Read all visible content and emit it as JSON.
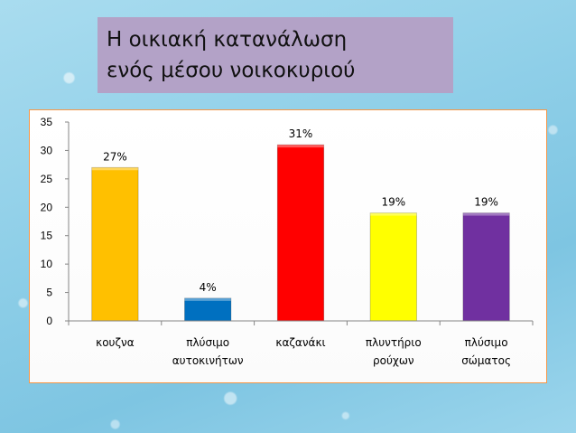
{
  "title": {
    "line1": "Η  οικιακή κατανάλωση",
    "line2": "ενός μέσου νοικοκυριού"
  },
  "chart_data": {
    "type": "bar",
    "categories": [
      [
        "κουζνα"
      ],
      [
        "πλύσιμο",
        "αυτοκινήτων"
      ],
      [
        "καζανάκι"
      ],
      [
        "πλυντήριο",
        "ρούχων"
      ],
      [
        "πλύσιμο",
        "σώματος"
      ]
    ],
    "values": [
      27,
      4,
      31,
      19,
      19
    ],
    "data_labels": [
      "27%",
      "4%",
      "31%",
      "19%",
      "19%"
    ],
    "colors": [
      "#ffc000",
      "#0070c0",
      "#ff0000",
      "#ffff00",
      "#7030a0"
    ],
    "ylim": [
      0,
      35
    ],
    "yticks": [
      0,
      5,
      10,
      15,
      20,
      25,
      30,
      35
    ],
    "grid": false,
    "legend": "none"
  },
  "colors": {
    "title_box": "#b3a2c7",
    "chart_frame": "#f79646"
  }
}
